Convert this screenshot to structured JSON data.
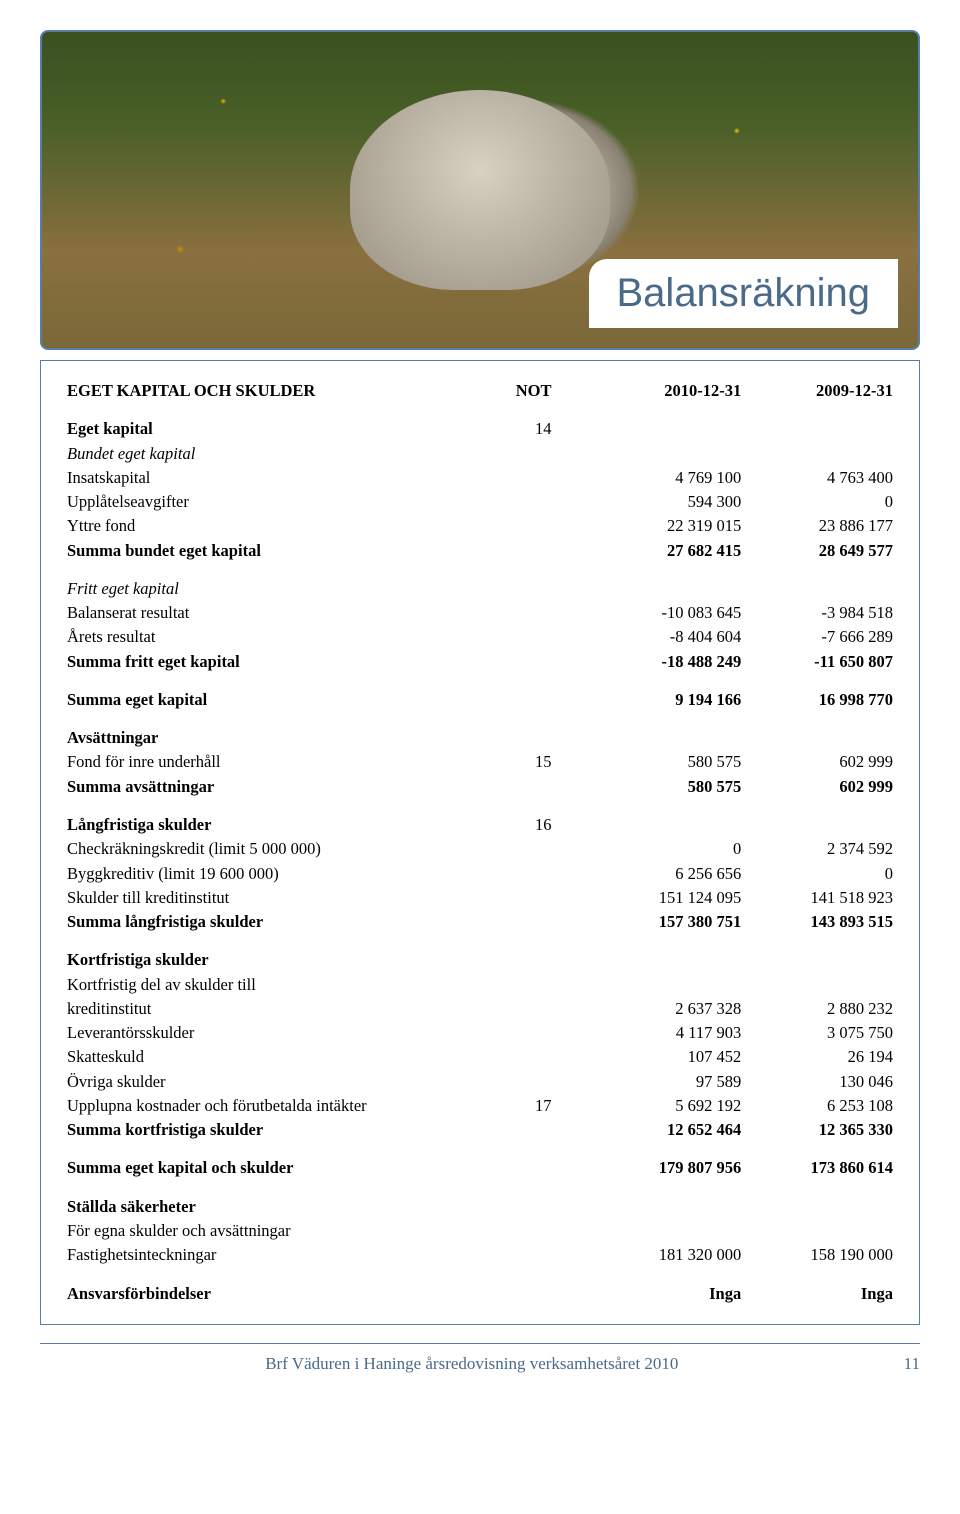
{
  "title": "Balansräkning",
  "header": {
    "col1": "EGET KAPITAL OCH SKULDER",
    "col2": "NOT",
    "col3": "2010-12-31",
    "col4": "2009-12-31"
  },
  "sections": [
    {
      "title": "Eget kapital",
      "title_not": "14",
      "subgroups": [
        {
          "subtitle": "Bundet eget kapital",
          "subtitle_italic": true,
          "rows": [
            {
              "label": "Insatskapital",
              "not": "",
              "y1": "4 769 100",
              "y2": "4 763 400"
            },
            {
              "label": "Upplåtelseavgifter",
              "not": "",
              "y1": "594 300",
              "y2": "0"
            },
            {
              "label": "Yttre fond",
              "not": "",
              "y1": "22 319 015",
              "y2": "23 886 177"
            }
          ],
          "sum": {
            "label": "Summa bundet eget kapital",
            "y1": "27 682 415",
            "y2": "28 649 577"
          }
        },
        {
          "subtitle": "Fritt eget kapital",
          "subtitle_italic": true,
          "rows": [
            {
              "label": "Balanserat resultat",
              "not": "",
              "y1": "-10 083 645",
              "y2": "-3 984 518"
            },
            {
              "label": "Årets resultat",
              "not": "",
              "y1": "-8 404 604",
              "y2": "-7 666 289"
            }
          ],
          "sum": {
            "label": "Summa fritt eget kapital",
            "y1": "-18 488 249",
            "y2": "-11 650 807"
          }
        }
      ],
      "section_sum": {
        "label": "Summa eget kapital",
        "y1": "9 194 166",
        "y2": "16 998 770"
      }
    },
    {
      "title": "Avsättningar",
      "rows": [
        {
          "label": "Fond för inre underhåll",
          "not": "15",
          "y1": "580 575",
          "y2": "602 999"
        }
      ],
      "sum": {
        "label": "Summa avsättningar",
        "y1": "580 575",
        "y2": "602 999"
      }
    },
    {
      "title": "Långfristiga skulder",
      "title_not": "16",
      "rows": [
        {
          "label": "Checkräkningskredit (limit 5 000 000)",
          "not": "",
          "y1": "0",
          "y2": "2 374 592"
        },
        {
          "label": "Byggkreditiv (limit 19 600 000)",
          "not": "",
          "y1": "6 256 656",
          "y2": "0"
        },
        {
          "label": "Skulder till kreditinstitut",
          "not": "",
          "y1": "151 124 095",
          "y2": "141 518 923"
        }
      ],
      "sum": {
        "label": "Summa långfristiga skulder",
        "y1": "157 380 751",
        "y2": "143 893 515"
      }
    },
    {
      "title": "Kortfristiga skulder",
      "rows": [
        {
          "label": "Kortfristig del av skulder till",
          "not": "",
          "y1": "",
          "y2": ""
        },
        {
          "label": "kreditinstitut",
          "not": "",
          "y1": "2 637 328",
          "y2": "2 880 232"
        },
        {
          "label": "Leverantörsskulder",
          "not": "",
          "y1": "4 117 903",
          "y2": "3 075 750"
        },
        {
          "label": "Skatteskuld",
          "not": "",
          "y1": "107 452",
          "y2": "26 194"
        },
        {
          "label": "Övriga skulder",
          "not": "",
          "y1": "97 589",
          "y2": "130 046"
        },
        {
          "label": "Upplupna kostnader och förutbetalda intäkter",
          "not": "17",
          "y1": "5 692 192",
          "y2": "6 253 108"
        }
      ],
      "sum": {
        "label": "Summa kortfristiga skulder",
        "y1": "12 652 464",
        "y2": "12 365 330"
      }
    }
  ],
  "grand_sum": {
    "label": "Summa eget kapital och skulder",
    "y1": "179 807 956",
    "y2": "173 860 614"
  },
  "securities": {
    "title": "Ställda säkerheter",
    "subtitle": "För egna skulder och avsättningar",
    "row": {
      "label": "Fastighetsinteckningar",
      "y1": "181 320 000",
      "y2": "158 190 000"
    }
  },
  "contingent": {
    "label": "Ansvarsförbindelser",
    "y1": "Inga",
    "y2": "Inga"
  },
  "footer": {
    "text": "Brf Väduren i Haninge årsredovisning verksamhetsåret 2010",
    "page": "11"
  },
  "colors": {
    "border": "#5a7ca8",
    "title_text": "#4a6a8a",
    "text": "#000000"
  }
}
